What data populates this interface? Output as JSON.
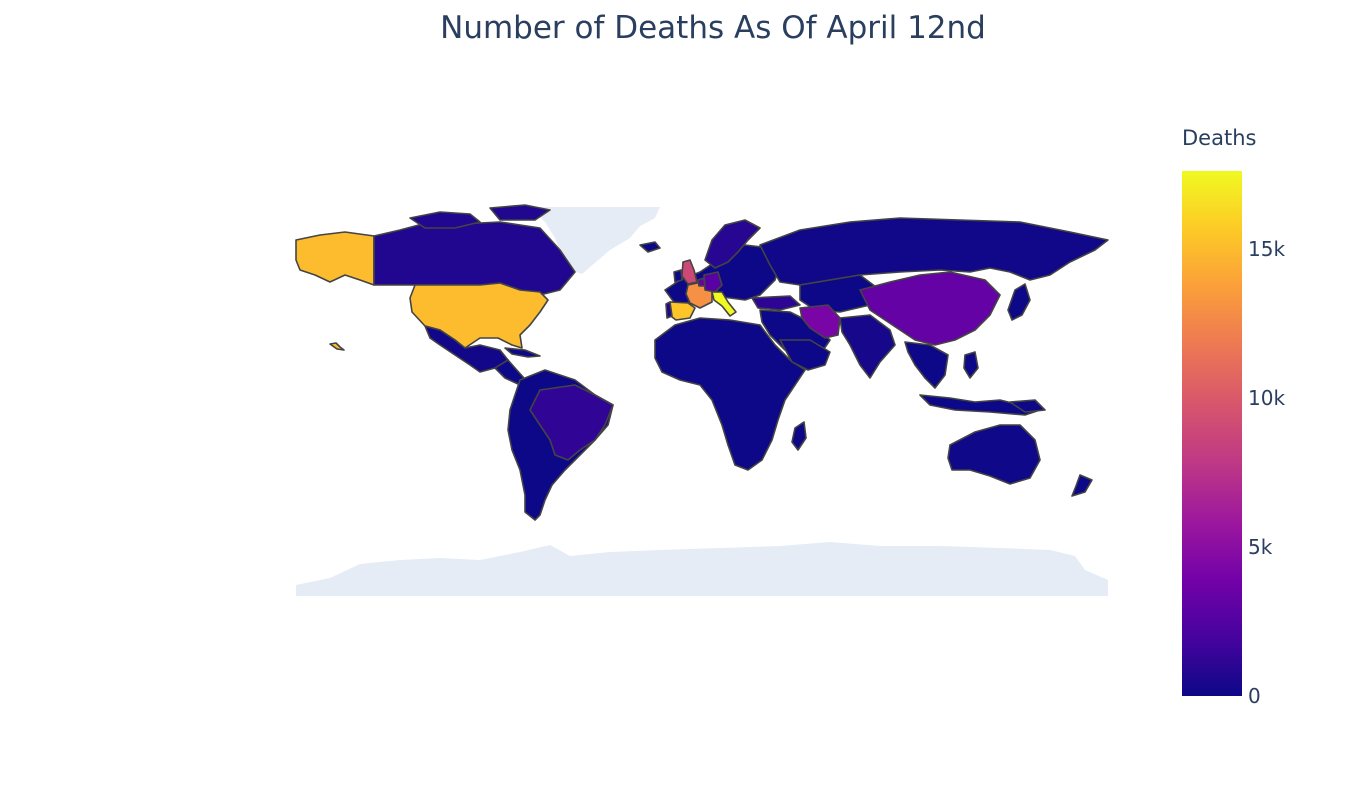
{
  "title": "Number of Deaths As Of April 12nd",
  "colorbar": {
    "title": "Deaths",
    "ticks": [
      {
        "label": "15k",
        "value": 15000
      },
      {
        "label": "10k",
        "value": 10000
      },
      {
        "label": "5k",
        "value": 5000
      },
      {
        "label": "0",
        "value": 0
      }
    ],
    "max": 17600
  },
  "colors": {
    "land_empty": "#e5ecf6",
    "border": "#444444",
    "scale": [
      "#0d0887",
      "#46039f",
      "#7201a8",
      "#9c179e",
      "#bd3786",
      "#d8576b",
      "#ed7953",
      "#fb9f3a",
      "#fdca26",
      "#f0f921"
    ]
  },
  "chart_data": {
    "type": "choropleth",
    "title": "Number of Deaths As Of April 12nd",
    "colorbar_title": "Deaths",
    "zrange": [
      0,
      17600
    ],
    "regions": [
      {
        "name": "United States",
        "value": 15000
      },
      {
        "name": "Italy",
        "value": 17600
      },
      {
        "name": "Spain",
        "value": 15400
      },
      {
        "name": "France",
        "value": 12900
      },
      {
        "name": "United Kingdom",
        "value": 8900
      },
      {
        "name": "Iran",
        "value": 4300
      },
      {
        "name": "China",
        "value": 3300
      },
      {
        "name": "Belgium",
        "value": 3400
      },
      {
        "name": "Germany",
        "value": 2800
      },
      {
        "name": "Netherlands",
        "value": 2700
      },
      {
        "name": "Brazil",
        "value": 1200
      },
      {
        "name": "Turkey",
        "value": 1100
      },
      {
        "name": "Switzerland",
        "value": 1000
      },
      {
        "name": "Sweden",
        "value": 900
      },
      {
        "name": "Canada",
        "value": 700
      },
      {
        "name": "Portugal",
        "value": 500
      },
      {
        "name": "Russia",
        "value": 100
      },
      {
        "name": "India",
        "value": 300
      },
      {
        "name": "Mexico",
        "value": 200
      },
      {
        "name": "Australia",
        "value": 60
      }
    ]
  }
}
